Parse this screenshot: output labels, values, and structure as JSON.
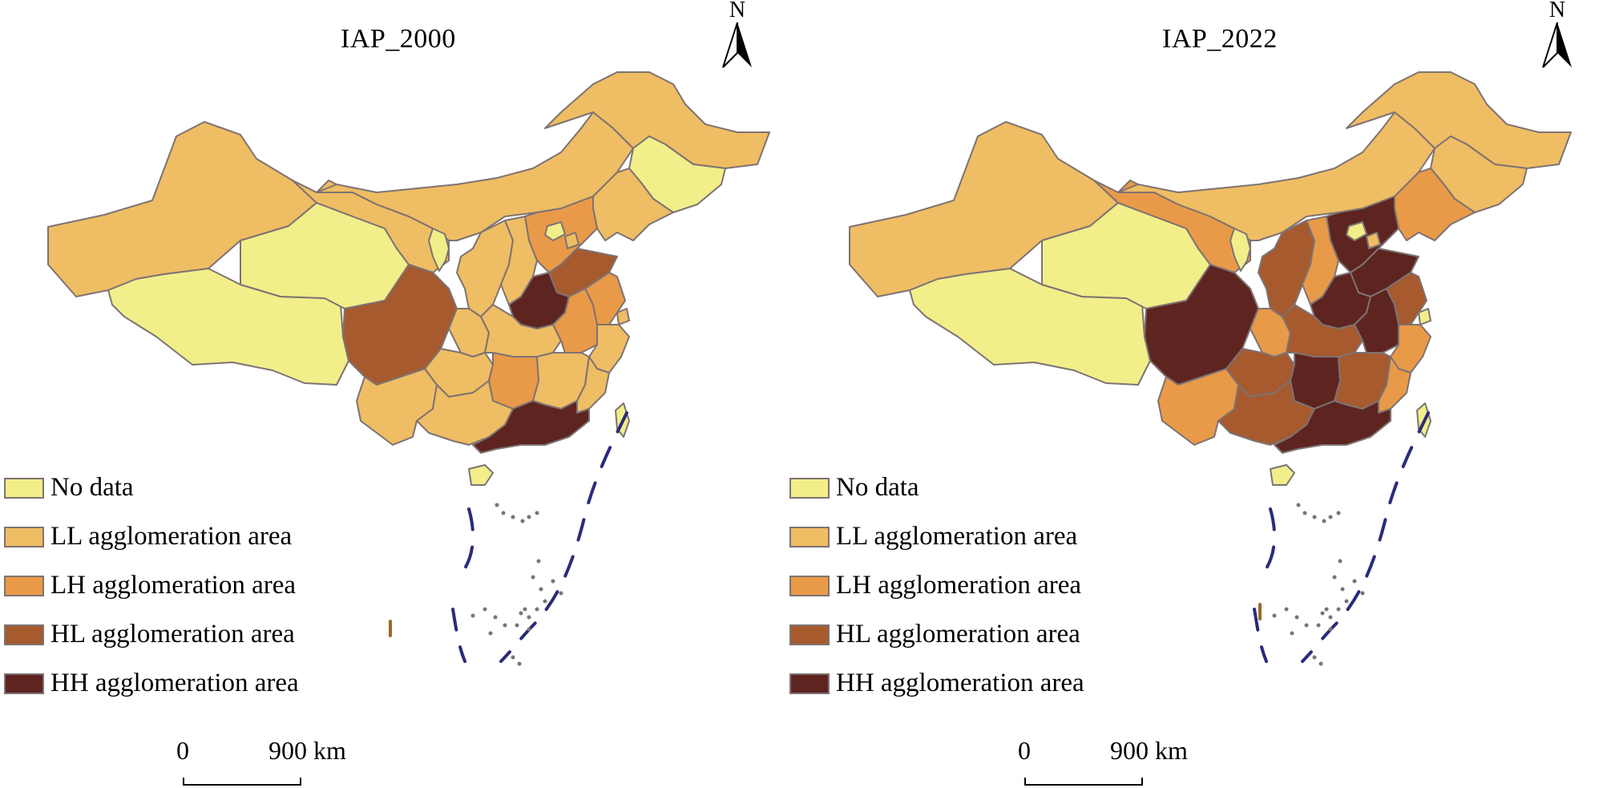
{
  "colors": {
    "no_data": "#f2ee8a",
    "ll": "#efbd63",
    "lh": "#e99a48",
    "hl": "#a65a2e",
    "hh": "#5e2420",
    "border": "#7d7373",
    "dash_line": "#2b2b7a"
  },
  "maps": [
    {
      "title": "IAP_2000",
      "north_label": "N",
      "legend": [
        {
          "key": "no_data",
          "label": "No data"
        },
        {
          "key": "ll",
          "label": "LL agglomeration area"
        },
        {
          "key": "lh",
          "label": "LH agglomeration area"
        },
        {
          "key": "hl",
          "label": "HL agglomeration area"
        },
        {
          "key": "hh",
          "label": "HH agglomeration area"
        }
      ],
      "scale": {
        "start": "0",
        "end": "900 km"
      },
      "regions": {
        "xinjiang": "ll",
        "tibet": "no_data",
        "qinghai": "no_data",
        "gansu": "ll",
        "inner_mongolia": "ll",
        "heilongjiang": "ll",
        "jilin": "no_data",
        "liaoning": "ll",
        "hebei": "lh",
        "beijing": "no_data",
        "tianjin": "ll",
        "ningxia": "no_data",
        "shaanxi": "ll",
        "shanxi": "ll",
        "shandong": "hl",
        "henan": "hh",
        "sichuan": "hl",
        "chongqing": "ll",
        "hubei": "ll",
        "anhui": "lh",
        "jiangsu": "lh",
        "shanghai": "ll",
        "zhejiang": "ll",
        "yunnan": "ll",
        "guizhou": "ll",
        "hunan": "lh",
        "jiangxi": "ll",
        "fujian": "ll",
        "guangxi": "ll",
        "guangdong": "hh",
        "hainan": "no_data",
        "taiwan": "no_data"
      }
    },
    {
      "title": "IAP_2022",
      "north_label": "N",
      "legend": [
        {
          "key": "no_data",
          "label": "No data"
        },
        {
          "key": "ll",
          "label": "LL agglomeration area"
        },
        {
          "key": "lh",
          "label": "LH agglomeration area"
        },
        {
          "key": "hl",
          "label": "HL agglomeration area"
        },
        {
          "key": "hh",
          "label": "HH agglomeration area"
        }
      ],
      "scale": {
        "start": "0",
        "end": "900 km"
      },
      "regions": {
        "xinjiang": "ll",
        "tibet": "no_data",
        "qinghai": "no_data",
        "gansu": "lh",
        "inner_mongolia": "ll",
        "heilongjiang": "ll",
        "jilin": "ll",
        "liaoning": "lh",
        "hebei": "hh",
        "beijing": "no_data",
        "tianjin": "ll",
        "ningxia": "no_data",
        "shaanxi": "hl",
        "shanxi": "lh",
        "shandong": "hh",
        "henan": "hh",
        "sichuan": "hh",
        "chongqing": "lh",
        "hubei": "hl",
        "anhui": "hh",
        "jiangsu": "hl",
        "shanghai": "no_data",
        "zhejiang": "lh",
        "yunnan": "lh",
        "guizhou": "hl",
        "hunan": "hh",
        "jiangxi": "hl",
        "fujian": "lh",
        "guangxi": "hl",
        "guangdong": "hh",
        "hainan": "no_data",
        "taiwan": "no_data"
      }
    }
  ]
}
